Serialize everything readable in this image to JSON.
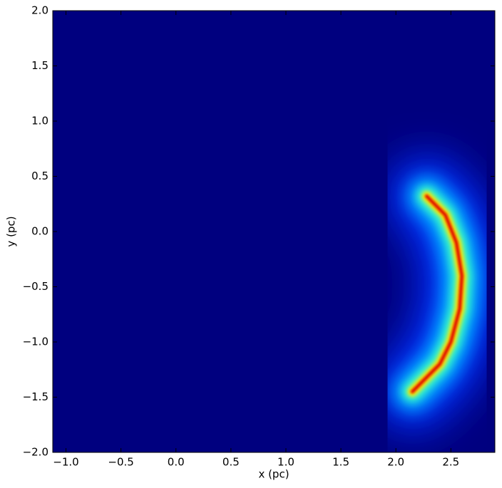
{
  "chart_data": {
    "type": "density",
    "xlabel": "x (pc)",
    "ylabel": "y (pc)",
    "xlim": [
      -1.12,
      2.9
    ],
    "ylim": [
      -2.0,
      2.0
    ],
    "xticks": [
      {
        "value": -1.0,
        "label": "−1.0"
      },
      {
        "value": -0.5,
        "label": "−0.5"
      },
      {
        "value": 0.0,
        "label": "0.0"
      },
      0.5,
      {
        "value": 1.0,
        "label": "1.0"
      },
      1.5,
      {
        "value": 2.0,
        "label": "2.0"
      },
      2.5
    ],
    "yticks": [
      {
        "value": -2.0,
        "label": "−2.0"
      },
      {
        "value": -1.5,
        "label": "−1.5"
      },
      {
        "value": -1.0,
        "label": "−1.0"
      },
      {
        "value": -0.5,
        "label": "−0.5"
      },
      {
        "value": 0.0,
        "label": "0.0"
      },
      0.5,
      {
        "value": 1.0,
        "label": "1.0"
      },
      1.5,
      {
        "value": 2.0,
        "label": "2.0"
      }
    ],
    "x": [
      2.28,
      2.45,
      2.55,
      2.6,
      2.58,
      2.5,
      2.4,
      2.25,
      2.15
    ],
    "y": [
      0.32,
      0.15,
      -0.1,
      -0.4,
      -0.7,
      -1.0,
      -1.2,
      -1.35,
      -1.45
    ],
    "background": "#00007f",
    "colors": [
      "#0030ff",
      "#00b0ff",
      "#40ffc0",
      "#ffe000",
      "#e01000"
    ]
  }
}
